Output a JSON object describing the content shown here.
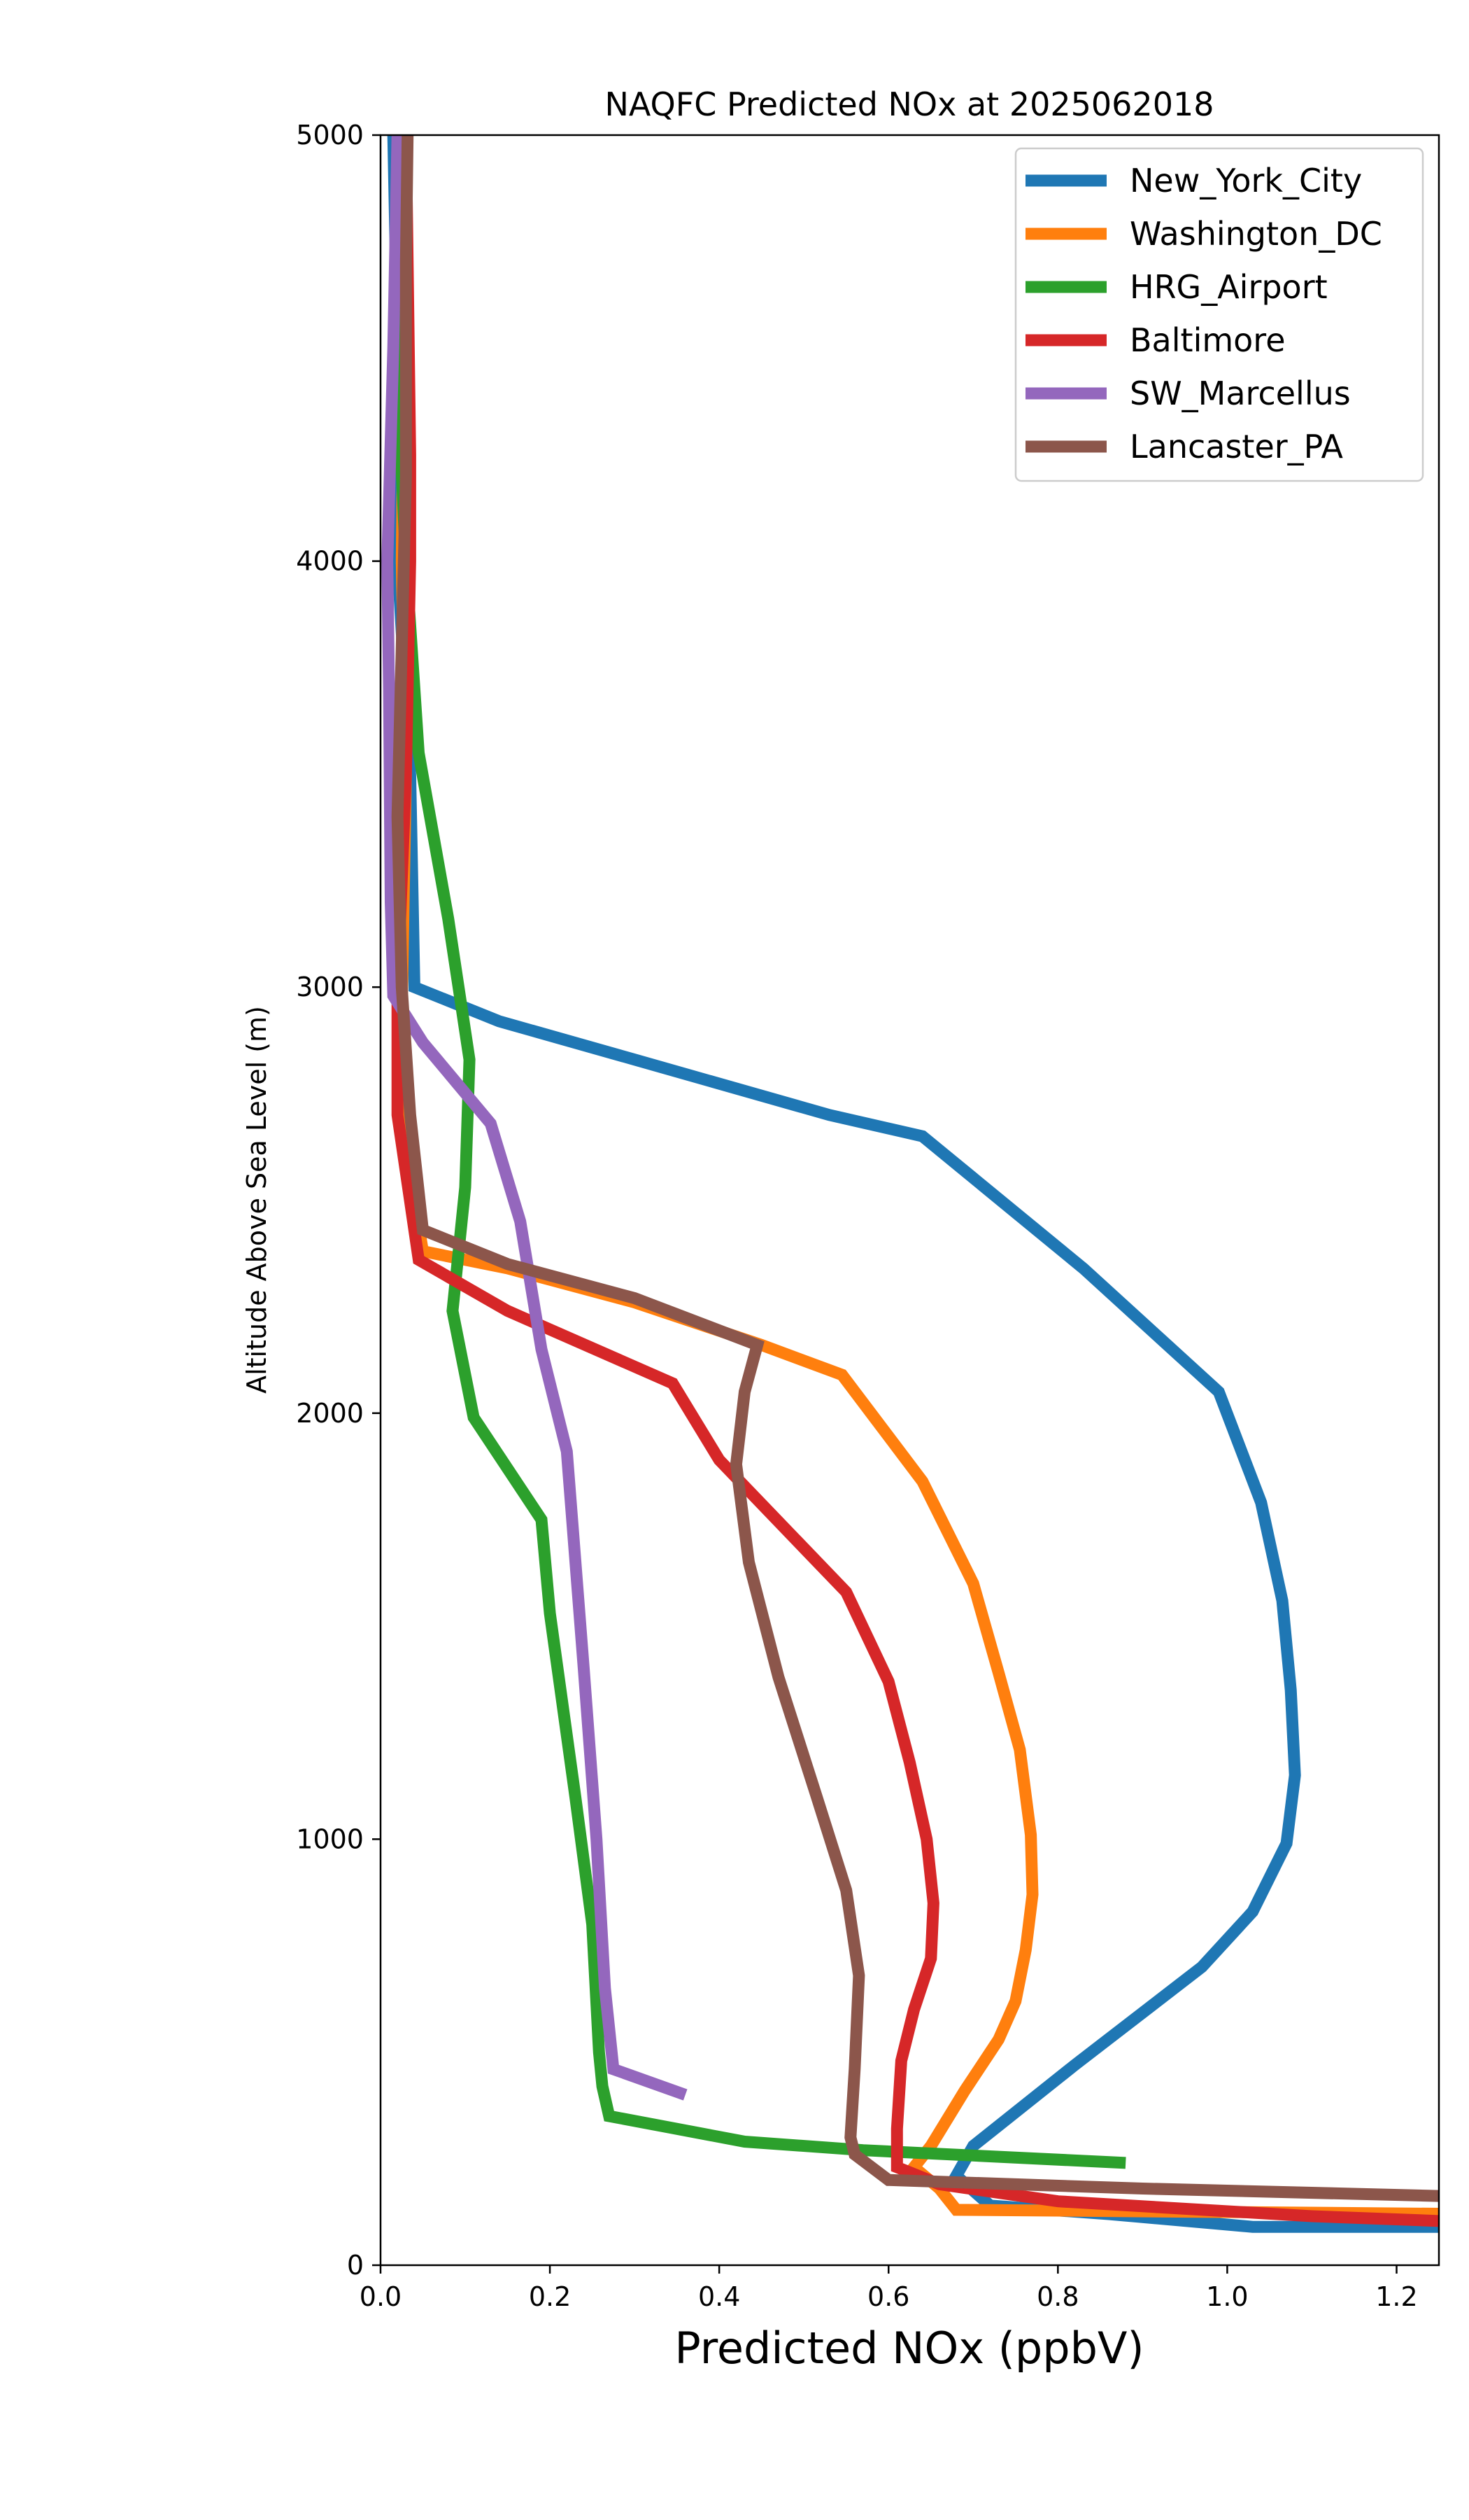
{
  "chart_data": {
    "type": "line",
    "title": "NAQFC Predicted NOx at 2025062018",
    "xlabel": "Predicted NOx (ppbV)",
    "ylabel": "Altitude Above Sea Level (m)",
    "xlim": [
      0.0,
      1.25
    ],
    "ylim": [
      0,
      5000
    ],
    "xticks": [
      0.0,
      0.2,
      0.4,
      0.6,
      0.8,
      1.0,
      1.2
    ],
    "xtick_labels": [
      "0.0",
      "0.2",
      "0.4",
      "0.6",
      "0.8",
      "1.0",
      "1.2"
    ],
    "yticks": [
      0,
      1000,
      2000,
      3000,
      4000,
      5000
    ],
    "ytick_labels": [
      "0",
      "1000",
      "2000",
      "3000",
      "4000",
      "5000"
    ],
    "grid": false,
    "legend_position": "top-right",
    "series": [
      {
        "name": "New_York_City",
        "color": "#1f77b4",
        "points": [
          [
            1.3,
            90
          ],
          [
            1.03,
            90
          ],
          [
            0.86,
            120
          ],
          [
            0.72,
            140
          ],
          [
            0.68,
            210
          ],
          [
            0.7,
            280
          ],
          [
            0.82,
            470
          ],
          [
            0.97,
            700
          ],
          [
            1.03,
            830
          ],
          [
            1.07,
            990
          ],
          [
            1.08,
            1150
          ],
          [
            1.075,
            1350
          ],
          [
            1.065,
            1560
          ],
          [
            1.04,
            1790
          ],
          [
            0.99,
            2050
          ],
          [
            0.83,
            2340
          ],
          [
            0.64,
            2650
          ],
          [
            0.53,
            2700
          ],
          [
            0.3,
            2830
          ],
          [
            0.14,
            2920
          ],
          [
            0.04,
            3000
          ],
          [
            0.035,
            3500
          ],
          [
            0.02,
            4000
          ],
          [
            0.02,
            4500
          ],
          [
            0.015,
            5000
          ]
        ]
      },
      {
        "name": "Washington_DC",
        "color": "#ff7f0e",
        "points": [
          [
            1.3,
            120
          ],
          [
            0.68,
            130
          ],
          [
            0.66,
            180
          ],
          [
            0.63,
            230
          ],
          [
            0.65,
            280
          ],
          [
            0.69,
            410
          ],
          [
            0.73,
            530
          ],
          [
            0.75,
            620
          ],
          [
            0.762,
            740
          ],
          [
            0.77,
            870
          ],
          [
            0.768,
            1010
          ],
          [
            0.755,
            1210
          ],
          [
            0.73,
            1390
          ],
          [
            0.7,
            1600
          ],
          [
            0.64,
            1840
          ],
          [
            0.545,
            2090
          ],
          [
            0.45,
            2160
          ],
          [
            0.3,
            2260
          ],
          [
            0.15,
            2340
          ],
          [
            0.05,
            2380
          ],
          [
            0.04,
            2500
          ],
          [
            0.025,
            2950
          ],
          [
            0.03,
            3500
          ],
          [
            0.025,
            4000
          ],
          [
            0.03,
            5000
          ]
        ]
      },
      {
        "name": "HRG_Airport",
        "color": "#2ca02c",
        "points": [
          [
            0.88,
            240
          ],
          [
            0.57,
            270
          ],
          [
            0.43,
            290
          ],
          [
            0.27,
            350
          ],
          [
            0.262,
            420
          ],
          [
            0.258,
            500
          ],
          [
            0.25,
            800
          ],
          [
            0.23,
            1100
          ],
          [
            0.2,
            1530
          ],
          [
            0.19,
            1750
          ],
          [
            0.11,
            1990
          ],
          [
            0.085,
            2240
          ],
          [
            0.1,
            2530
          ],
          [
            0.105,
            2830
          ],
          [
            0.08,
            3160
          ],
          [
            0.045,
            3550
          ],
          [
            0.03,
            4000
          ],
          [
            0.018,
            4500
          ],
          [
            0.02,
            5000
          ]
        ]
      },
      {
        "name": "Baltimore",
        "color": "#d62728",
        "points": [
          [
            1.3,
            100
          ],
          [
            1.1,
            115
          ],
          [
            0.8,
            150
          ],
          [
            0.66,
            190
          ],
          [
            0.61,
            230
          ],
          [
            0.61,
            320
          ],
          [
            0.615,
            480
          ],
          [
            0.63,
            600
          ],
          [
            0.65,
            720
          ],
          [
            0.653,
            850
          ],
          [
            0.645,
            1000
          ],
          [
            0.625,
            1180
          ],
          [
            0.6,
            1370
          ],
          [
            0.55,
            1580
          ],
          [
            0.4,
            1890
          ],
          [
            0.345,
            2070
          ],
          [
            0.15,
            2240
          ],
          [
            0.045,
            2360
          ],
          [
            0.02,
            2700
          ],
          [
            0.02,
            3000
          ],
          [
            0.03,
            3500
          ],
          [
            0.035,
            4000
          ],
          [
            0.035,
            4250
          ],
          [
            0.03,
            5000
          ]
        ]
      },
      {
        "name": "SW_Marcellus",
        "color": "#9467bd",
        "points": [
          [
            0.36,
            400
          ],
          [
            0.275,
            460
          ],
          [
            0.265,
            650
          ],
          [
            0.255,
            1000
          ],
          [
            0.24,
            1400
          ],
          [
            0.22,
            1910
          ],
          [
            0.19,
            2150
          ],
          [
            0.165,
            2450
          ],
          [
            0.13,
            2680
          ],
          [
            0.05,
            2870
          ],
          [
            0.015,
            2980
          ],
          [
            0.012,
            3200
          ],
          [
            0.01,
            3700
          ],
          [
            0.008,
            4000
          ],
          [
            0.015,
            4500
          ],
          [
            0.02,
            5000
          ]
        ]
      },
      {
        "name": "Lancaster_PA",
        "color": "#8c564b",
        "points": [
          [
            1.3,
            160
          ],
          [
            0.9,
            180
          ],
          [
            0.6,
            200
          ],
          [
            0.56,
            260
          ],
          [
            0.555,
            300
          ],
          [
            0.56,
            460
          ],
          [
            0.565,
            680
          ],
          [
            0.55,
            880
          ],
          [
            0.515,
            1100
          ],
          [
            0.47,
            1380
          ],
          [
            0.435,
            1650
          ],
          [
            0.42,
            1880
          ],
          [
            0.43,
            2050
          ],
          [
            0.445,
            2160
          ],
          [
            0.3,
            2270
          ],
          [
            0.15,
            2350
          ],
          [
            0.05,
            2430
          ],
          [
            0.035,
            2700
          ],
          [
            0.025,
            3000
          ],
          [
            0.02,
            3400
          ],
          [
            0.025,
            3800
          ],
          [
            0.03,
            4200
          ],
          [
            0.03,
            4700
          ],
          [
            0.032,
            5000
          ]
        ]
      }
    ]
  }
}
